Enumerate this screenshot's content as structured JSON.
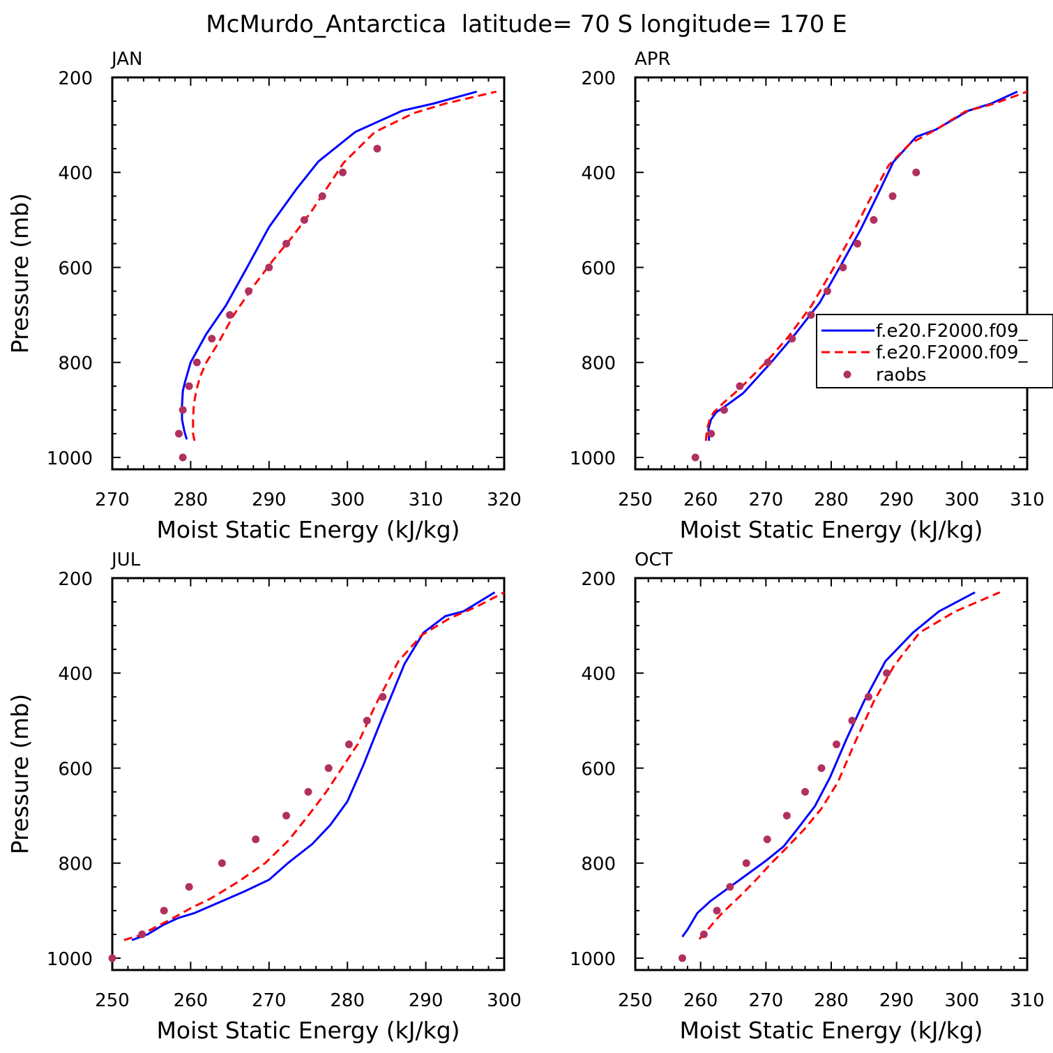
{
  "figure": {
    "title": "McMurdo_Antarctica  latitude= 70 S longitude= 170 E"
  },
  "colors": {
    "series_blue": "#0000ff",
    "series_red": "#ff0000",
    "raobs": "#b03060"
  },
  "legend": {
    "entries": [
      "f.e20.F2000.f09_",
      "f.e20.F2000.f09_",
      "raobs"
    ]
  },
  "chart_data": [
    {
      "type": "line",
      "panel_label": "JAN",
      "xlabel": "Moist Static Energy (kJ/kg)",
      "ylabel": "Pressure (mb)",
      "xlim": [
        270,
        320
      ],
      "ylim": [
        1025,
        200
      ],
      "xticks": [
        270,
        280,
        290,
        300,
        310,
        320
      ],
      "yticks": [
        200,
        400,
        600,
        800,
        1000
      ],
      "grid": false,
      "series": [
        {
          "style": "solid",
          "color": "#0000ff",
          "points": [
            [
              279.5,
              962
            ],
            [
              279.2,
              945
            ],
            [
              278.9,
              920
            ],
            [
              278.9,
              890
            ],
            [
              279.0,
              860
            ],
            [
              279.3,
              840
            ],
            [
              280.0,
              800
            ],
            [
              282.0,
              740
            ],
            [
              284.5,
              680
            ],
            [
              287.2,
              600
            ],
            [
              290.0,
              515
            ],
            [
              293.5,
              435
            ],
            [
              296.3,
              377
            ],
            [
              301.0,
              315
            ],
            [
              307.0,
              270
            ],
            [
              311.0,
              255
            ],
            [
              316.5,
              230
            ]
          ]
        },
        {
          "style": "dashed",
          "color": "#ff0000",
          "points": [
            [
              280.5,
              965
            ],
            [
              280.3,
              950
            ],
            [
              280.3,
              920
            ],
            [
              280.4,
              890
            ],
            [
              280.7,
              860
            ],
            [
              281.2,
              830
            ],
            [
              282.0,
              800
            ],
            [
              283.5,
              760
            ],
            [
              285.5,
              700
            ],
            [
              288.0,
              640
            ],
            [
              290.5,
              585
            ],
            [
              293.0,
              535
            ],
            [
              295.5,
              480
            ],
            [
              297.5,
              430
            ],
            [
              299.5,
              380
            ],
            [
              303.5,
              315
            ],
            [
              308.5,
              275
            ],
            [
              312.5,
              255
            ],
            [
              319.0,
              230
            ]
          ]
        }
      ],
      "raobs": [
        [
          279.0,
          1000
        ],
        [
          278.5,
          950
        ],
        [
          279.0,
          900
        ],
        [
          279.8,
          850
        ],
        [
          280.8,
          800
        ],
        [
          282.7,
          750
        ],
        [
          285.0,
          700
        ],
        [
          287.4,
          650
        ],
        [
          290.0,
          600
        ],
        [
          292.2,
          550
        ],
        [
          294.5,
          500
        ],
        [
          296.8,
          450
        ],
        [
          299.4,
          400
        ],
        [
          303.8,
          350
        ]
      ]
    },
    {
      "type": "line",
      "panel_label": "APR",
      "xlabel": "Moist Static Energy (kJ/kg)",
      "ylabel": "",
      "xlim": [
        250,
        310
      ],
      "ylim": [
        1025,
        200
      ],
      "xticks": [
        250,
        260,
        270,
        280,
        290,
        300,
        310
      ],
      "yticks": [
        200,
        400,
        600,
        800,
        1000
      ],
      "grid": false,
      "series": [
        {
          "style": "solid",
          "color": "#0000ff",
          "points": [
            [
              261.3,
              965
            ],
            [
              261.2,
              940
            ],
            [
              261.6,
              920
            ],
            [
              262.4,
              905
            ],
            [
              264.0,
              890
            ],
            [
              266.5,
              865
            ],
            [
              270.8,
              800
            ],
            [
              274.5,
              740
            ],
            [
              278.2,
              675
            ],
            [
              281.5,
              595
            ],
            [
              284.5,
              520
            ],
            [
              287.0,
              450
            ],
            [
              289.5,
              378
            ],
            [
              293.0,
              325
            ],
            [
              296.0,
              310
            ],
            [
              301.0,
              270
            ],
            [
              304.5,
              255
            ],
            [
              308.5,
              230
            ]
          ]
        },
        {
          "style": "dashed",
          "color": "#ff0000",
          "points": [
            [
              260.8,
              965
            ],
            [
              261.0,
              940
            ],
            [
              261.4,
              920
            ],
            [
              262.0,
              905
            ],
            [
              263.5,
              885
            ],
            [
              266.0,
              855
            ],
            [
              270.0,
              800
            ],
            [
              273.5,
              745
            ],
            [
              277.0,
              680
            ],
            [
              280.2,
              605
            ],
            [
              283.2,
              530
            ],
            [
              285.8,
              460
            ],
            [
              288.8,
              385
            ],
            [
              292.0,
              340
            ],
            [
              296.0,
              310
            ],
            [
              300.5,
              272
            ],
            [
              305.0,
              255
            ],
            [
              310.0,
              230
            ]
          ]
        }
      ],
      "raobs": [
        [
          259.2,
          1000
        ],
        [
          261.6,
          950
        ],
        [
          263.6,
          900
        ],
        [
          266.0,
          850
        ],
        [
          270.3,
          800
        ],
        [
          274.0,
          750
        ],
        [
          276.9,
          700
        ],
        [
          279.4,
          650
        ],
        [
          281.8,
          600
        ],
        [
          284.0,
          550
        ],
        [
          286.5,
          500
        ],
        [
          289.4,
          450
        ],
        [
          293.0,
          400
        ]
      ]
    },
    {
      "type": "line",
      "panel_label": "JUL",
      "xlabel": "Moist Static Energy (kJ/kg)",
      "ylabel": "Pressure (mb)",
      "xlim": [
        250,
        300
      ],
      "ylim": [
        1025,
        200
      ],
      "xticks": [
        250,
        260,
        270,
        280,
        290,
        300
      ],
      "yticks": [
        200,
        400,
        600,
        800,
        1000
      ],
      "grid": false,
      "series": [
        {
          "style": "solid",
          "color": "#0000ff",
          "points": [
            [
              252.5,
              962
            ],
            [
              254.5,
              950
            ],
            [
              256.5,
              930
            ],
            [
              258.5,
              915
            ],
            [
              260.5,
              905
            ],
            [
              264.0,
              880
            ],
            [
              266.8,
              860
            ],
            [
              270.0,
              835
            ],
            [
              272.4,
              800
            ],
            [
              275.5,
              760
            ],
            [
              277.8,
              720
            ],
            [
              280.0,
              670
            ],
            [
              282.0,
              595
            ],
            [
              284.3,
              500
            ],
            [
              287.3,
              380
            ],
            [
              289.7,
              315
            ],
            [
              292.5,
              280
            ],
            [
              294.8,
              270
            ],
            [
              298.8,
              230
            ]
          ]
        },
        {
          "style": "dashed",
          "color": "#ff0000",
          "points": [
            [
              251.5,
              962
            ],
            [
              253.5,
              952
            ],
            [
              255.5,
              935
            ],
            [
              257.5,
              918
            ],
            [
              260.0,
              895
            ],
            [
              262.5,
              875
            ],
            [
              266.0,
              840
            ],
            [
              269.5,
              800
            ],
            [
              272.5,
              752
            ],
            [
              275.0,
              700
            ],
            [
              277.3,
              650
            ],
            [
              279.3,
              600
            ],
            [
              281.3,
              550
            ],
            [
              283.5,
              470
            ],
            [
              286.5,
              375
            ],
            [
              289.5,
              320
            ],
            [
              293.0,
              285
            ],
            [
              296.5,
              260
            ],
            [
              300.0,
              230
            ]
          ]
        }
      ],
      "raobs": [
        [
          250.0,
          1000
        ],
        [
          253.8,
          950
        ],
        [
          256.6,
          900
        ],
        [
          259.8,
          850
        ],
        [
          264.0,
          800
        ],
        [
          268.3,
          750
        ],
        [
          272.2,
          700
        ],
        [
          275.0,
          650
        ],
        [
          277.6,
          600
        ],
        [
          280.2,
          550
        ],
        [
          282.5,
          500
        ],
        [
          284.5,
          450
        ]
      ]
    },
    {
      "type": "line",
      "panel_label": "OCT",
      "xlabel": "Moist Static Energy (kJ/kg)",
      "ylabel": "",
      "xlim": [
        250,
        310
      ],
      "ylim": [
        1025,
        200
      ],
      "xticks": [
        250,
        260,
        270,
        280,
        290,
        300,
        310
      ],
      "yticks": [
        200,
        400,
        600,
        800,
        1000
      ],
      "grid": false,
      "series": [
        {
          "style": "solid",
          "color": "#0000ff",
          "points": [
            [
              257.2,
              955
            ],
            [
              258.0,
              940
            ],
            [
              259.5,
              905
            ],
            [
              261.5,
              880
            ],
            [
              264.5,
              850
            ],
            [
              267.5,
              820
            ],
            [
              270.0,
              795
            ],
            [
              272.7,
              765
            ],
            [
              275.0,
              725
            ],
            [
              277.5,
              680
            ],
            [
              279.8,
              620
            ],
            [
              282.3,
              540
            ],
            [
              285.0,
              460
            ],
            [
              288.3,
              375
            ],
            [
              292.5,
              315
            ],
            [
              296.5,
              270
            ],
            [
              302.0,
              230
            ]
          ]
        },
        {
          "style": "dashed",
          "color": "#ff0000",
          "points": [
            [
              259.8,
              960
            ],
            [
              260.8,
              945
            ],
            [
              262.0,
              925
            ],
            [
              263.3,
              905
            ],
            [
              266.0,
              870
            ],
            [
              268.5,
              835
            ],
            [
              270.5,
              805
            ],
            [
              273.0,
              770
            ],
            [
              275.8,
              730
            ],
            [
              278.5,
              685
            ],
            [
              281.0,
              630
            ],
            [
              283.5,
              550
            ],
            [
              286.5,
              460
            ],
            [
              289.6,
              385
            ],
            [
              293.5,
              315
            ],
            [
              299.0,
              270
            ],
            [
              305.8,
              230
            ]
          ]
        }
      ],
      "raobs": [
        [
          257.2,
          1000
        ],
        [
          260.5,
          950
        ],
        [
          262.5,
          900
        ],
        [
          264.5,
          850
        ],
        [
          267.0,
          800
        ],
        [
          270.2,
          750
        ],
        [
          273.2,
          700
        ],
        [
          276.0,
          650
        ],
        [
          278.5,
          600
        ],
        [
          280.8,
          550
        ],
        [
          283.2,
          500
        ],
        [
          285.7,
          450
        ],
        [
          288.5,
          400
        ]
      ]
    }
  ]
}
